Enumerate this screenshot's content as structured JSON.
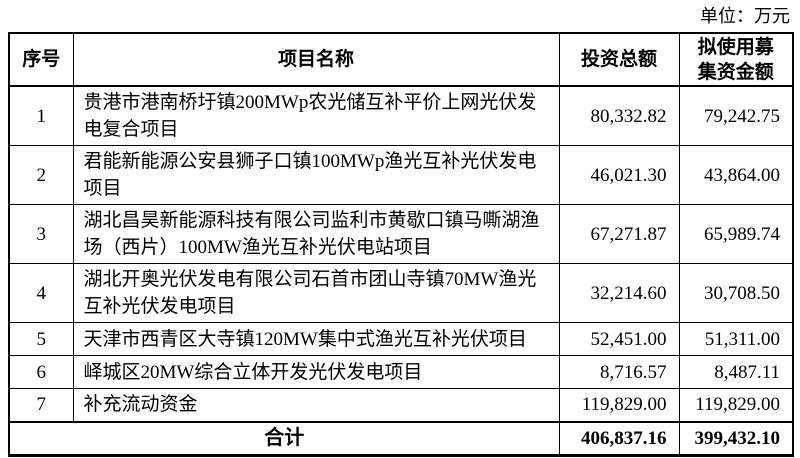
{
  "unit_label": "单位：万元",
  "table": {
    "headers": {
      "index": "序号",
      "project_name": "项目名称",
      "total_investment": "投资总额",
      "raised_funds": "拟使用募\n集资金额"
    },
    "rows": [
      {
        "no": "1",
        "name": "贵港市港南桥圩镇200MWp农光储互补平价上网光伏发电复合项目",
        "investment": "80,332.82",
        "raised": "79,242.75"
      },
      {
        "no": "2",
        "name": "君能新能源公安县狮子口镇100MWp渔光互补光伏发电项目",
        "investment": "46,021.30",
        "raised": "43,864.00"
      },
      {
        "no": "3",
        "name": "湖北昌昊新能源科技有限公司监利市黄歇口镇马嘶湖渔场（西片）100MW渔光互补光伏电站项目",
        "investment": "67,271.87",
        "raised": "65,989.74"
      },
      {
        "no": "4",
        "name": "湖北开奥光伏发电有限公司石首市团山寺镇70MW渔光互补光伏发电项目",
        "investment": "32,214.60",
        "raised": "30,708.50"
      },
      {
        "no": "5",
        "name": "天津市西青区大寺镇120MW集中式渔光互补光伏项目",
        "investment": "52,451.00",
        "raised": "51,311.00"
      },
      {
        "no": "6",
        "name": "峄城区20MW综合立体开发光伏发电项目",
        "investment": "8,716.57",
        "raised": "8,487.11"
      },
      {
        "no": "7",
        "name": "补充流动资金",
        "investment": "119,829.00",
        "raised": "119,829.00"
      }
    ],
    "total": {
      "label": "合计",
      "investment": "406,837.16",
      "raised": "399,432.10"
    }
  }
}
